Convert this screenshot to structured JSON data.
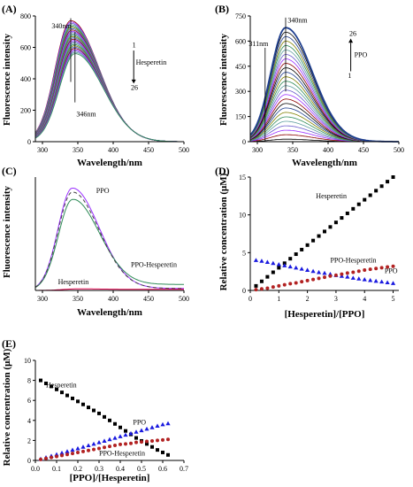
{
  "chart_data": [
    {
      "panel": "(A)",
      "type": "line",
      "xlabel": "Wavelength/nm",
      "ylabel": "Fluorescence intensity",
      "xlim": [
        290,
        500
      ],
      "ylim": [
        0,
        800
      ],
      "xticks": [
        300,
        350,
        400,
        450,
        500
      ],
      "yticks": [
        0,
        200,
        400,
        600,
        800
      ],
      "curve_count": 26,
      "peak_wavelength_first": 340,
      "peak_wavelength_last": 346,
      "peak_first": 770,
      "peak_last": 560,
      "annotations": [
        {
          "text": "340nm"
        },
        {
          "text": "346nm"
        },
        {
          "text": "1"
        },
        {
          "text": "Hesperetin"
        },
        {
          "text": "26"
        }
      ],
      "arrow_direction": "down",
      "colors": [
        "#8b0000",
        "#9b30ff",
        "#6a5acd",
        "#5f9ea0",
        "#2e8b57",
        "#808000",
        "#4169e1"
      ]
    },
    {
      "panel": "(B)",
      "type": "line",
      "xlabel": "Wavelength/nm",
      "ylabel": "Fluorescence intensity",
      "xlim": [
        290,
        500
      ],
      "ylim": [
        0,
        750
      ],
      "xticks": [
        300,
        350,
        400,
        450,
        500
      ],
      "yticks": [
        0,
        150,
        300,
        450,
        600,
        750
      ],
      "curve_count": 26,
      "peak_wavelength": 340,
      "peak_first": 15,
      "peak_last": 680,
      "annotations": [
        {
          "text": "340nm"
        },
        {
          "text": "311nm"
        },
        {
          "text": "26"
        },
        {
          "text": "PPO"
        },
        {
          "text": "1"
        }
      ],
      "arrow_direction": "up",
      "colors": [
        "#000000",
        "#8b0000",
        "#9b30ff",
        "#6a5acd",
        "#5f9ea0",
        "#2e8b57",
        "#808000",
        "#1f3f8f"
      ]
    },
    {
      "panel": "(C)",
      "type": "line",
      "xlabel": "Wavelength/nm",
      "ylabel": "Fluorescence intensity",
      "xlim": [
        290,
        500
      ],
      "ylim": [
        0,
        850
      ],
      "xticks": [
        300,
        350,
        400,
        450,
        500
      ],
      "series": [
        {
          "name": "PPO",
          "color": "#9b30ff",
          "peak": 770,
          "tail": 15,
          "dashed": false
        },
        {
          "name": "PPO-Hesperetin",
          "color": "#2e8b57",
          "peak": 690,
          "tail": 45,
          "dashed": false
        },
        {
          "name": "",
          "color": "#444444",
          "peak": 740,
          "tail": 15,
          "dashed": true
        },
        {
          "name": "Hesperetin",
          "color": "#e0004d",
          "peak": 12,
          "tail": 8,
          "dashed": false
        }
      ]
    },
    {
      "panel": "(D)",
      "type": "scatter",
      "xlabel": "[Hesperetin]/[PPO]",
      "ylabel": "Relative concentration (μM)",
      "xlim": [
        0,
        5.2
      ],
      "ylim": [
        0,
        15
      ],
      "xticks": [
        0,
        1,
        2,
        3,
        4,
        5
      ],
      "yticks": [
        0,
        5,
        10,
        15
      ],
      "series": [
        {
          "name": "Hesperetin",
          "color": "#000000",
          "marker": "square",
          "x": [
            0.2,
            0.4,
            0.6,
            0.8,
            1.0,
            1.2,
            1.4,
            1.6,
            1.8,
            2.0,
            2.2,
            2.4,
            2.6,
            2.8,
            3.0,
            3.2,
            3.4,
            3.6,
            3.8,
            4.0,
            4.2,
            4.4,
            4.6,
            4.8,
            5.0
          ],
          "y": [
            0.6,
            1.2,
            1.8,
            2.4,
            3.0,
            3.6,
            4.2,
            4.8,
            5.4,
            6.0,
            6.6,
            7.2,
            7.8,
            8.4,
            9.0,
            9.6,
            10.2,
            10.8,
            11.4,
            12.0,
            12.6,
            13.2,
            13.8,
            14.4,
            15.0
          ]
        },
        {
          "name": "PPO",
          "color": "#1a1adf",
          "marker": "triangle",
          "x": [
            0.2,
            0.4,
            0.6,
            0.8,
            1.0,
            1.2,
            1.4,
            1.6,
            1.8,
            2.0,
            2.2,
            2.4,
            2.6,
            2.8,
            3.0,
            3.2,
            3.4,
            3.6,
            3.8,
            4.0,
            4.2,
            4.4,
            4.6,
            4.8,
            5.0
          ],
          "y": [
            4.0,
            3.9,
            3.75,
            3.6,
            3.45,
            3.3,
            3.15,
            3.0,
            2.85,
            2.7,
            2.55,
            2.4,
            2.3,
            2.15,
            2.0,
            1.9,
            1.8,
            1.65,
            1.55,
            1.45,
            1.35,
            1.25,
            1.15,
            1.05,
            0.95
          ]
        },
        {
          "name": "PPO-Hesperetin",
          "color": "#b22222",
          "marker": "circle",
          "x": [
            0.2,
            0.4,
            0.6,
            0.8,
            1.0,
            1.2,
            1.4,
            1.6,
            1.8,
            2.0,
            2.2,
            2.4,
            2.6,
            2.8,
            3.0,
            3.2,
            3.4,
            3.6,
            3.8,
            4.0,
            4.2,
            4.4,
            4.6,
            4.8,
            5.0
          ],
          "y": [
            0.1,
            0.2,
            0.3,
            0.45,
            0.6,
            0.75,
            0.9,
            1.0,
            1.15,
            1.3,
            1.45,
            1.6,
            1.75,
            1.9,
            2.0,
            2.15,
            2.3,
            2.4,
            2.55,
            2.7,
            2.8,
            2.9,
            3.0,
            3.1,
            3.2
          ]
        }
      ]
    },
    {
      "panel": "(E)",
      "type": "scatter",
      "xlabel": "[PPO]/[Hesperetin]",
      "ylabel": "Relative concentration (μM)",
      "xlim": [
        0,
        0.7
      ],
      "ylim": [
        0,
        10
      ],
      "xticks": [
        0.0,
        0.1,
        0.2,
        0.3,
        0.4,
        0.5,
        0.6,
        0.7
      ],
      "yticks": [
        0,
        2,
        4,
        6,
        8,
        10
      ],
      "series": [
        {
          "name": "Hesperetin",
          "color": "#000000",
          "marker": "square",
          "x": [
            0.025,
            0.05,
            0.075,
            0.1,
            0.125,
            0.15,
            0.175,
            0.2,
            0.225,
            0.25,
            0.275,
            0.3,
            0.325,
            0.35,
            0.375,
            0.4,
            0.425,
            0.45,
            0.475,
            0.5,
            0.525,
            0.55,
            0.575,
            0.6,
            0.625
          ],
          "y": [
            8.0,
            7.7,
            7.4,
            7.1,
            6.8,
            6.5,
            6.2,
            5.9,
            5.6,
            5.3,
            5.0,
            4.7,
            4.35,
            4.0,
            3.65,
            3.3,
            2.95,
            2.6,
            2.25,
            1.95,
            1.65,
            1.35,
            1.05,
            0.8,
            0.55
          ]
        },
        {
          "name": "PPO",
          "color": "#1a1adf",
          "marker": "triangle",
          "x": [
            0.025,
            0.05,
            0.075,
            0.1,
            0.125,
            0.15,
            0.175,
            0.2,
            0.225,
            0.25,
            0.275,
            0.3,
            0.325,
            0.35,
            0.375,
            0.4,
            0.425,
            0.45,
            0.475,
            0.5,
            0.525,
            0.55,
            0.575,
            0.6,
            0.625
          ],
          "y": [
            0.15,
            0.3,
            0.45,
            0.6,
            0.75,
            0.9,
            1.05,
            1.2,
            1.35,
            1.5,
            1.65,
            1.8,
            1.95,
            2.1,
            2.25,
            2.4,
            2.55,
            2.7,
            2.85,
            3.0,
            3.15,
            3.3,
            3.45,
            3.6,
            3.7
          ]
        },
        {
          "name": "PPO-Hesperetin",
          "color": "#b22222",
          "marker": "circle",
          "x": [
            0.025,
            0.05,
            0.075,
            0.1,
            0.125,
            0.15,
            0.175,
            0.2,
            0.225,
            0.25,
            0.275,
            0.3,
            0.325,
            0.35,
            0.375,
            0.4,
            0.425,
            0.45,
            0.475,
            0.5,
            0.525,
            0.55,
            0.575,
            0.6,
            0.625
          ],
          "y": [
            0.1,
            0.2,
            0.3,
            0.4,
            0.5,
            0.6,
            0.7,
            0.8,
            0.9,
            1.0,
            1.1,
            1.2,
            1.3,
            1.4,
            1.5,
            1.6,
            1.65,
            1.7,
            1.8,
            1.85,
            1.9,
            1.95,
            2.0,
            2.05,
            2.1
          ]
        }
      ]
    }
  ]
}
